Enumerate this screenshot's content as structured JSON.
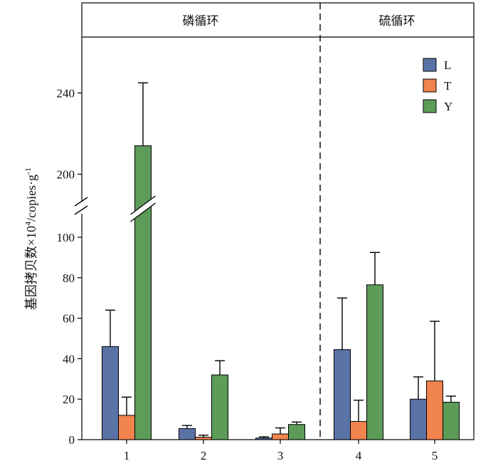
{
  "chart_data": {
    "type": "bar",
    "panel_titles": [
      "磷循环",
      "硫循环"
    ],
    "categories": [
      "1",
      "2",
      "3",
      "4",
      "5"
    ],
    "ylabel_main": "基因拷贝数×10",
    "ylabel_sup": "4",
    "ylabel_unit": "/copies·g",
    "ylabel_sup2": "-1",
    "y_axis_broken": true,
    "y_lower_range": [
      0,
      100
    ],
    "y_upper_range": [
      190,
      270
    ],
    "y_ticks": [
      0,
      20,
      40,
      60,
      80,
      100,
      200,
      240
    ],
    "grid": false,
    "legend_position": "top-right",
    "series": [
      {
        "name": "L",
        "color": "#5a73a6",
        "values": [
          46,
          5.5,
          0.8,
          44.5,
          20
        ],
        "errors": [
          18,
          1.5,
          0.6,
          25.5,
          11
        ]
      },
      {
        "name": "T",
        "color": "#f0834e",
        "values": [
          12,
          1.2,
          2.8,
          9,
          29
        ],
        "errors": [
          9,
          1,
          3,
          10.5,
          29.5
        ]
      },
      {
        "name": "Y",
        "color": "#5c9b58",
        "values": [
          214,
          32,
          7.5,
          76.5,
          18.5
        ],
        "errors": [
          31,
          7,
          1.2,
          16,
          3
        ]
      }
    ]
  }
}
